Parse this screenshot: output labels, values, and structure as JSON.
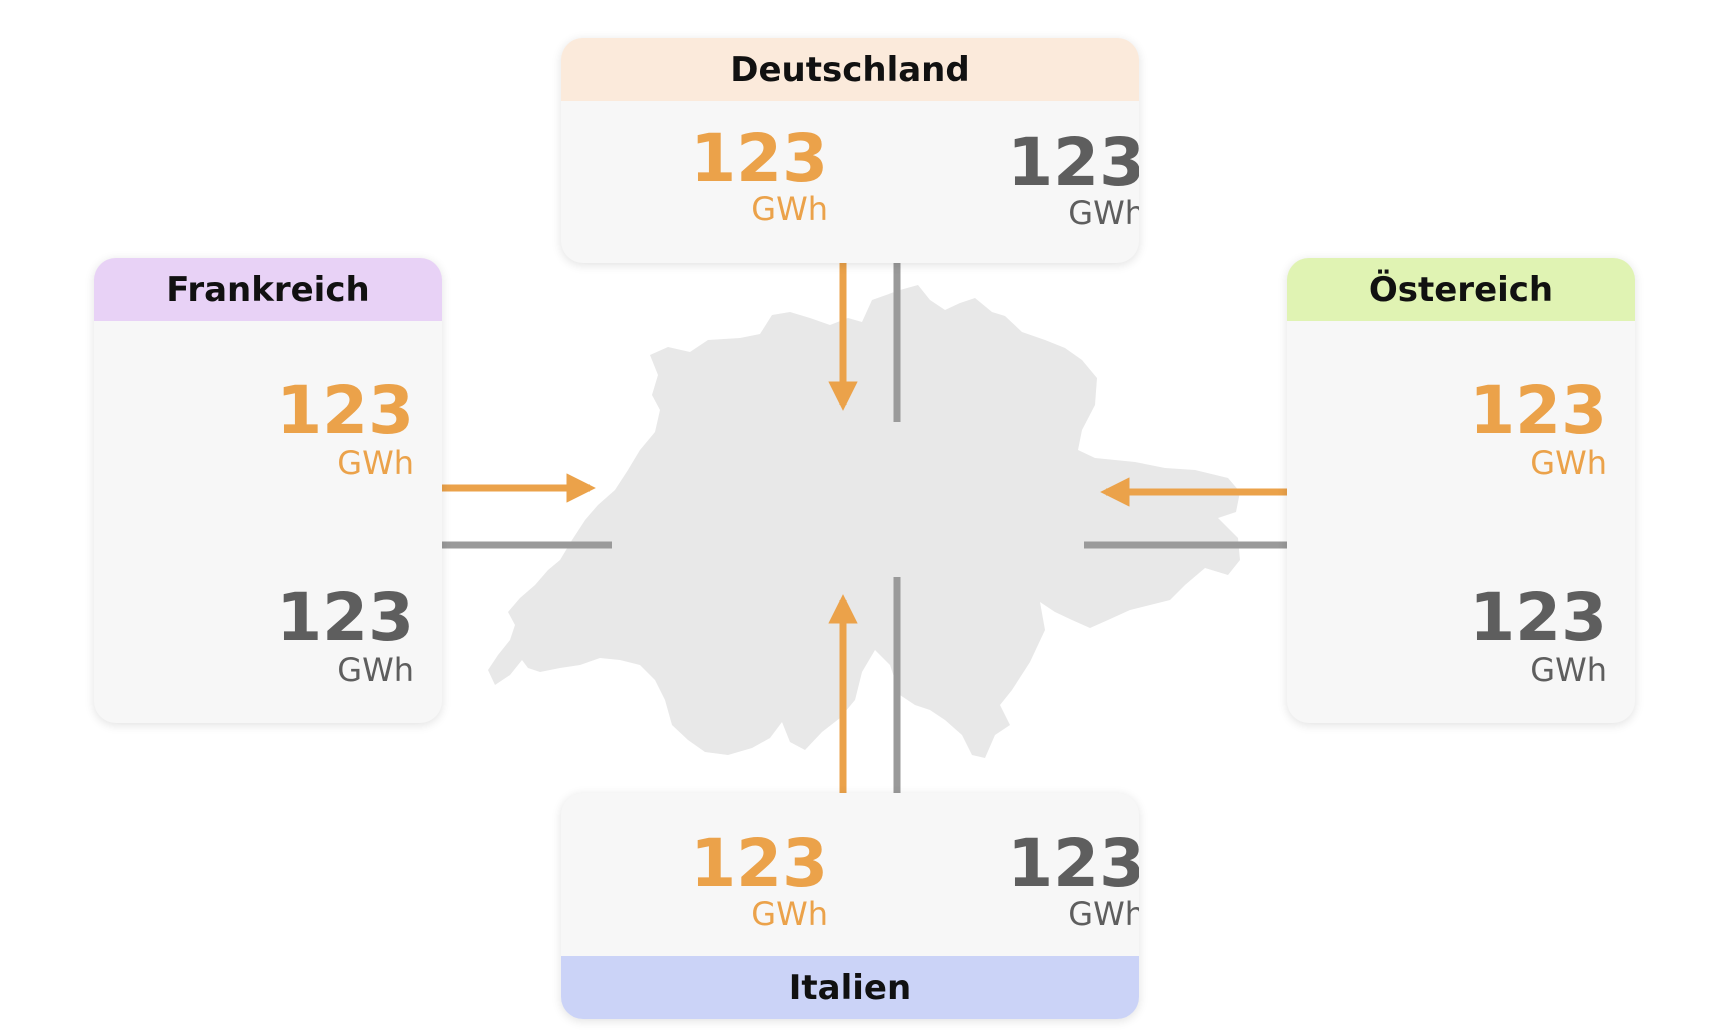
{
  "unit": "GWh",
  "colors": {
    "import": "#eba24a",
    "export": "#5e5e5e",
    "export_arrow": "#9a9a9a",
    "map": "#e8e8e8",
    "card_bg": "#f7f7f7"
  },
  "center_shape": "switzerland-map",
  "countries": {
    "deutschland": {
      "name": "Deutschland",
      "header_color": "#fbeadb",
      "import_value": "123",
      "export_value": "123"
    },
    "frankreich": {
      "name": "Frankreich",
      "header_color": "#e8d2f6",
      "import_value": "123",
      "export_value": "123"
    },
    "oestereich": {
      "name": "Östereich",
      "header_color": "#e0f3b3",
      "import_value": "123",
      "export_value": "123"
    },
    "italien": {
      "name": "Italien",
      "header_color": "#cbd3f7",
      "import_value": "123",
      "export_value": "123"
    }
  }
}
